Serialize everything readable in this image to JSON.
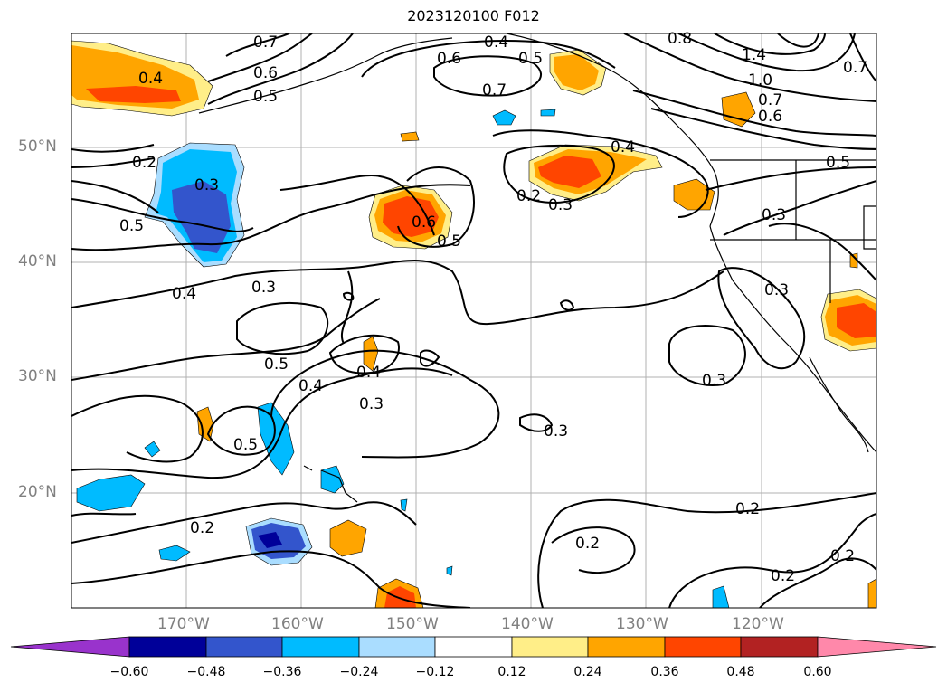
{
  "title": "2023120100 F012",
  "lat_labels": [
    "50°N",
    "40°N",
    "30°N",
    "20°N"
  ],
  "lon_labels": [
    "170°W",
    "160°W",
    "150°W",
    "140°W",
    "130°W",
    "120°W"
  ],
  "contour_labels": [
    "0.7",
    "0.4",
    "0.6",
    "0.5",
    "0.6",
    "0.5",
    "0.7",
    "0.8",
    "1.4",
    "1.0",
    "0.7",
    "0.6",
    "0.7",
    "0.4",
    "0.2",
    "0.3",
    "0.5",
    "0.4",
    "0.5",
    "0.3",
    "0.2",
    "0.3",
    "0.6",
    "0.5",
    "0.3",
    "0.4",
    "0.3",
    "0.4",
    "0.5",
    "0.4",
    "0.3",
    "0.3",
    "0.3",
    "0.5",
    "0.2",
    "0.2",
    "0.2",
    "0.2",
    "0.2"
  ],
  "colorbar": {
    "ticks": [
      "−0.60",
      "−0.48",
      "−0.36",
      "−0.24",
      "−0.12",
      "0.12",
      "0.24",
      "0.36",
      "0.48",
      "0.60"
    ],
    "colors": [
      "#9933cc",
      "#000099",
      "#3355cc",
      "#00bbff",
      "#aaddff",
      "#ffffff",
      "#ffee88",
      "#ffa500",
      "#ff4500",
      "#b22222",
      "#ff88aa"
    ]
  }
}
